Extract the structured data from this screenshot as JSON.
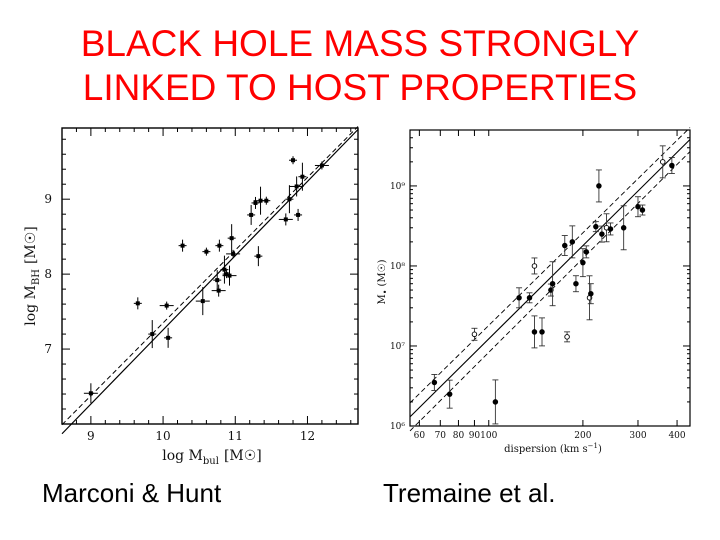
{
  "slide": {
    "title_line1": "BLACK HOLE MASS STRONGLY",
    "title_line2": "LINKED TO HOST PROPERTIES",
    "caption_left": "Marconi & Hunt",
    "caption_right": "Tremaine et al.",
    "title_color": "#ff0000"
  },
  "chart_data": [
    {
      "type": "scatter",
      "xlabel_main": "log  M",
      "xlabel_sub": "bul",
      "xlabel_unit": "[M",
      "ylabel_main": "log  M",
      "ylabel_sub": "BH",
      "ylabel_unit": "[M",
      "xlim": [
        8.6,
        12.7
      ],
      "ylim": [
        6.0,
        9.95
      ],
      "xticks": [
        "9",
        "10",
        "11",
        "12"
      ],
      "yticks": [
        "7",
        "8",
        "9"
      ],
      "series": [
        {
          "points": [
            {
              "x": 9.0,
              "y": 6.41
            },
            {
              "x": 9.65,
              "y": 7.61
            },
            {
              "x": 9.85,
              "y": 7.2
            },
            {
              "x": 10.05,
              "y": 7.58
            },
            {
              "x": 10.07,
              "y": 7.15
            },
            {
              "x": 10.27,
              "y": 8.38
            },
            {
              "x": 10.55,
              "y": 7.64
            },
            {
              "x": 10.6,
              "y": 8.3
            },
            {
              "x": 10.75,
              "y": 7.92
            },
            {
              "x": 10.77,
              "y": 7.78
            },
            {
              "x": 10.85,
              "y": 8.06
            },
            {
              "x": 10.88,
              "y": 8.0
            },
            {
              "x": 10.92,
              "y": 7.98
            },
            {
              "x": 10.78,
              "y": 8.38
            },
            {
              "x": 10.95,
              "y": 8.48
            },
            {
              "x": 10.97,
              "y": 8.27
            },
            {
              "x": 11.22,
              "y": 8.79
            },
            {
              "x": 11.28,
              "y": 8.95
            },
            {
              "x": 11.35,
              "y": 8.98
            },
            {
              "x": 11.43,
              "y": 8.98
            },
            {
              "x": 11.32,
              "y": 8.24
            },
            {
              "x": 11.7,
              "y": 8.73
            },
            {
              "x": 11.75,
              "y": 9.0
            },
            {
              "x": 11.8,
              "y": 9.52
            },
            {
              "x": 11.85,
              "y": 9.17
            },
            {
              "x": 11.87,
              "y": 8.79
            },
            {
              "x": 11.93,
              "y": 9.3
            },
            {
              "x": 12.2,
              "y": 9.45
            }
          ]
        }
      ],
      "fit_line": {
        "x": [
          8.6,
          12.7
        ],
        "y": [
          5.87,
          9.93
        ]
      }
    },
    {
      "type": "scatter",
      "xlabel": "dispersion  (km s",
      "xlabel_sup": "−1",
      "xlabel_end": ")",
      "ylabel_main": "M",
      "ylabel_sub": "•",
      "ylabel_unit": "(M",
      "x_scale": "log",
      "xlim": [
        56,
        440
      ],
      "ylim": [
        1000000,
        5000000000
      ],
      "xticks": [
        "60",
        "70",
        "80",
        "90",
        "100",
        "200",
        "300",
        "400"
      ],
      "yticks": [
        "10⁶",
        "10⁷",
        "10⁸",
        "10⁹"
      ],
      "series": [
        {
          "points": [
            {
              "x": 67,
              "y": 3500000
            },
            {
              "x": 75,
              "y": 2500000
            },
            {
              "x": 90,
              "y": 14000000
            },
            {
              "x": 105,
              "y": 2000000
            },
            {
              "x": 125,
              "y": 40000000
            },
            {
              "x": 135,
              "y": 40000000
            },
            {
              "x": 140,
              "y": 15000000
            },
            {
              "x": 140,
              "y": 100000000
            },
            {
              "x": 148,
              "y": 15000000
            },
            {
              "x": 158,
              "y": 50000000
            },
            {
              "x": 160,
              "y": 60000000
            },
            {
              "x": 175,
              "y": 180000000
            },
            {
              "x": 178,
              "y": 13000000
            },
            {
              "x": 185,
              "y": 200000000
            },
            {
              "x": 190,
              "y": 60000000
            },
            {
              "x": 200,
              "y": 110000000
            },
            {
              "x": 205,
              "y": 150000000
            },
            {
              "x": 210,
              "y": 40000000
            },
            {
              "x": 212,
              "y": 45000000
            },
            {
              "x": 220,
              "y": 310000000
            },
            {
              "x": 225,
              "y": 1000000000
            },
            {
              "x": 230,
              "y": 250000000
            },
            {
              "x": 238,
              "y": 300000000
            },
            {
              "x": 245,
              "y": 290000000
            },
            {
              "x": 270,
              "y": 300000000
            },
            {
              "x": 300,
              "y": 550000000
            },
            {
              "x": 310,
              "y": 500000000
            },
            {
              "x": 360,
              "y": 2000000000
            },
            {
              "x": 385,
              "y": 1800000000
            }
          ]
        }
      ],
      "fit_line": {
        "x": [
          56,
          440
        ],
        "y": [
          1300000,
          3800000000
        ]
      }
    }
  ]
}
